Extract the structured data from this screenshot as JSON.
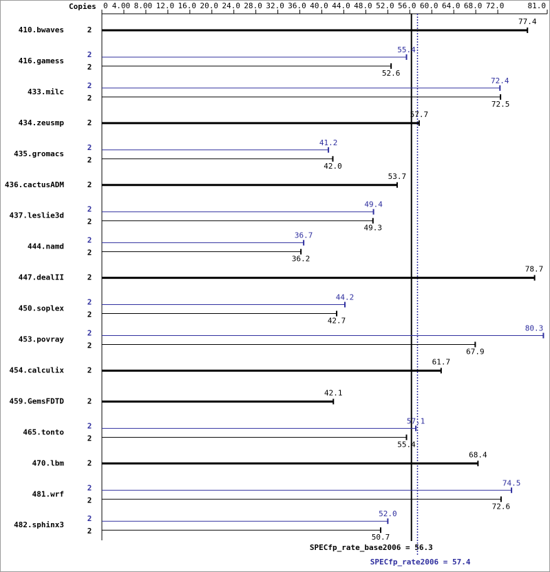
{
  "chart_data": {
    "type": "spec-bar",
    "copies_label": "Copies",
    "categories": [
      "410.bwaves",
      "416.gamess",
      "433.milc",
      "434.zeusmp",
      "435.gromacs",
      "436.cactusADM",
      "437.leslie3d",
      "444.namd",
      "447.dealII",
      "450.soplex",
      "453.povray",
      "454.calculix",
      "459.GemsFDTD",
      "465.tonto",
      "470.lbm",
      "481.wrf",
      "482.sphinx3"
    ],
    "series": [
      {
        "color": "#000000",
        "values": [
          77.4,
          52.6,
          72.5,
          57.7,
          42.0,
          53.7,
          49.3,
          36.2,
          78.7,
          42.7,
          67.9,
          61.7,
          42.1,
          55.4,
          68.4,
          72.6,
          50.7
        ],
        "value_labels": [
          "77.4",
          "52.6",
          "72.5",
          "57.7",
          "42.0",
          "53.7",
          "49.3",
          "36.2",
          "78.7",
          "42.7",
          "67.9",
          "61.7",
          "42.1",
          "55.4",
          "68.4",
          "72.6",
          "50.7"
        ],
        "copies": [
          2,
          2,
          2,
          2,
          2,
          2,
          2,
          2,
          2,
          2,
          2,
          2,
          2,
          2,
          2,
          2,
          2
        ]
      },
      {
        "color": "#2e2e9e",
        "values": [
          null,
          55.4,
          72.4,
          null,
          41.2,
          null,
          49.4,
          36.7,
          null,
          44.2,
          80.3,
          null,
          null,
          57.1,
          null,
          74.5,
          52.0
        ],
        "value_labels": [
          null,
          "55.4",
          "72.4",
          null,
          "41.2",
          null,
          "49.4",
          "36.7",
          null,
          "44.2",
          "80.3",
          null,
          null,
          "57.1",
          null,
          "74.5",
          "52.0"
        ],
        "copies": [
          null,
          2,
          2,
          null,
          2,
          null,
          2,
          2,
          null,
          2,
          2,
          null,
          null,
          2,
          null,
          2,
          2
        ]
      }
    ],
    "reference_lines": [
      {
        "value": 56.3,
        "label": "SPECfp_rate_base2006 = 56.3",
        "color": "#000000",
        "style": "solid"
      },
      {
        "value": 57.4,
        "label": "SPECfp_rate2006 = 57.4",
        "color": "#2e2e9e",
        "style": "dotted"
      }
    ],
    "xlim": [
      0,
      81
    ],
    "xticks": [
      0,
      {
        "value": 4,
        "label": "4.00"
      },
      {
        "value": 8,
        "label": "8.00"
      },
      {
        "value": 12,
        "label": "12.0"
      },
      {
        "value": 16,
        "label": "16.0"
      },
      {
        "value": 20,
        "label": "20.0"
      },
      {
        "value": 24,
        "label": "24.0"
      },
      {
        "value": 28,
        "label": "28.0"
      },
      {
        "value": 32,
        "label": "32.0"
      },
      {
        "value": 36,
        "label": "36.0"
      },
      {
        "value": 40,
        "label": "40.0"
      },
      {
        "value": 44,
        "label": "44.0"
      },
      {
        "value": 48,
        "label": "48.0"
      },
      {
        "value": 52,
        "label": "52.0"
      },
      {
        "value": 56,
        "label": "56.0"
      },
      {
        "value": 60,
        "label": "60.0"
      },
      {
        "value": 64,
        "label": "64.0"
      },
      {
        "value": 68,
        "label": "68.0"
      },
      {
        "value": 72,
        "label": "72.0"
      },
      {
        "value": 81,
        "label": "81.0"
      }
    ]
  }
}
